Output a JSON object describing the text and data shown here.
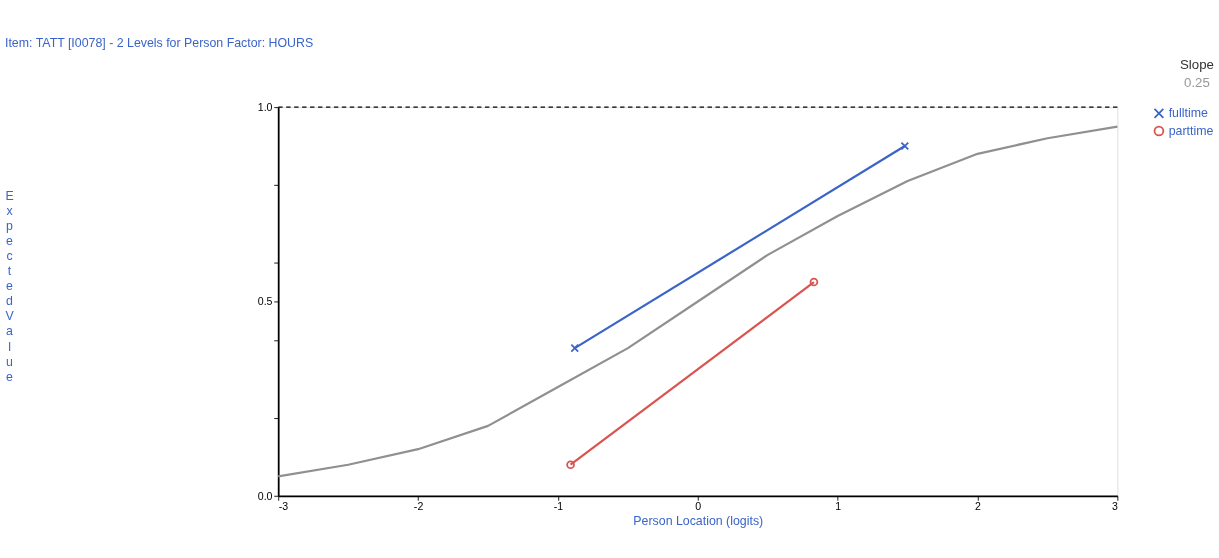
{
  "chart_data": {
    "type": "line",
    "title": "Item: TATT [I0078] - 2 Levels for Person Factor: HOURS",
    "xlabel": "Person Location (logits)",
    "ylabel": "Expected Value",
    "annotations": [
      "Slope",
      "0.25"
    ],
    "series": [
      {
        "color": "#909090",
        "marker": "none",
        "x": [
          -3,
          -2.5,
          -2,
          -1.5,
          -1,
          -0.5,
          0,
          0.5,
          1,
          1.5,
          2,
          2.5,
          3
        ],
        "values": [
          0.05,
          0.08,
          0.12,
          0.18,
          0.28,
          0.38,
          0.5,
          0.62,
          0.72,
          0.81,
          0.88,
          0.92,
          0.95
        ]
      },
      {
        "name": "fulltime",
        "color": "#3a64c8",
        "marker": "cross",
        "x": [
          -0.88,
          1.48
        ],
        "values": [
          0.38,
          0.9
        ]
      },
      {
        "name": "parttime",
        "color": "#d9544f",
        "marker": "circle",
        "x": [
          -0.91,
          0.83
        ],
        "values": [
          0.08,
          0.55
        ]
      }
    ],
    "xlim": [
      -3,
      3
    ],
    "xticks": [
      -3,
      -2,
      -1,
      0,
      1,
      2,
      3
    ],
    "ylim": [
      0,
      1
    ],
    "yticks": [
      {
        "value": 0,
        "label": "0.0"
      },
      {
        "value": 0.2,
        "label": null
      },
      {
        "value": 0.4,
        "label": null
      },
      {
        "value": 0.5,
        "label": "0.5"
      },
      {
        "value": 0.6,
        "label": null
      },
      {
        "value": 0.8,
        "label": null
      },
      {
        "value": 1,
        "label": "1.0"
      }
    ],
    "ref_lines": [
      {
        "axis": "y",
        "value": 1,
        "line_style": "dashed",
        "color": "#000000"
      }
    ],
    "grid": false,
    "legend": "right"
  }
}
